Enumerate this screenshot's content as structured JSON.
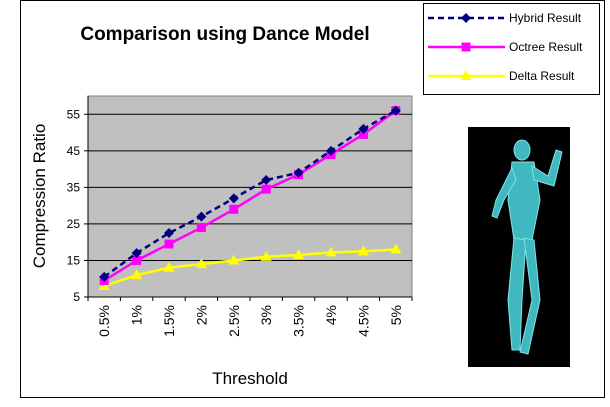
{
  "chart_data": {
    "type": "line",
    "title": "Comparison using Dance Model",
    "x_label": "Threshold",
    "y_label": "Compression Ratio",
    "categories": [
      "0.5%",
      "1%",
      "1.5%",
      "2%",
      "2.5%",
      "3%",
      "3.5%",
      "4%",
      "4.5%",
      "5%"
    ],
    "series": [
      {
        "name": "Hybrid Result",
        "color": "#000080",
        "marker": "diamond",
        "dashed": true,
        "values": [
          10.5,
          17,
          22.5,
          27,
          32,
          37,
          39,
          45,
          51,
          56
        ]
      },
      {
        "name": "Octree Result",
        "color": "#ff00ff",
        "marker": "square",
        "dashed": false,
        "values": [
          9.5,
          15,
          19.5,
          24,
          29,
          34.5,
          38.5,
          44,
          49.5,
          56
        ]
      },
      {
        "name": "Delta Result",
        "color": "#ffff00",
        "marker": "triangle",
        "dashed": false,
        "values": [
          8,
          11,
          13,
          14,
          15,
          16,
          16.5,
          17.2,
          17.5,
          18
        ]
      }
    ],
    "ylim": [
      5,
      60
    ],
    "yticks": [
      5,
      15,
      25,
      35,
      45,
      55
    ],
    "grid": true,
    "legend": "top-right"
  }
}
